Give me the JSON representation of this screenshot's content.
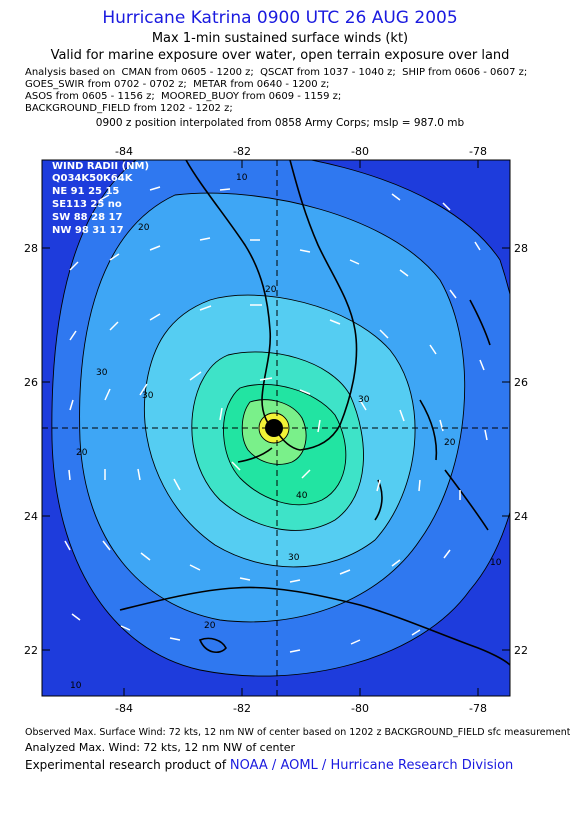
{
  "title": "Hurricane Katrina 0900 UTC 26 AUG 2005",
  "subtitle": "Max 1-min sustained surface winds (kt)",
  "valid": "Valid for marine exposure over water, open terrain exposure over land",
  "sources": [
    "Analysis based on  CMAN from 0605 - 1200 z;  QSCAT from 1037 - 1040 z;  SHIP from 0606 - 0607 z;",
    "GOES_SWIR from 0702 - 0702 z;  METAR from 0640 - 1200 z;",
    "ASOS from 0605 - 1156 z;  MOORED_BUOY from 0609 - 1159 z;",
    "BACKGROUND_FIELD from 1202 - 1202 z;"
  ],
  "position": "0900 z position interpolated from 0858 Army Corps; mslp = 987.0 mb",
  "axes": {
    "lon_ticks": [
      "-84",
      "-82",
      "-80",
      "-78"
    ],
    "lat_ticks": [
      "28",
      "26",
      "24",
      "22"
    ]
  },
  "contour_labels": [
    "10",
    "20",
    "20",
    "30",
    "30",
    "30",
    "40",
    "20",
    "30",
    "20",
    "10",
    "10",
    "20"
  ],
  "wind_radii": {
    "title": "WIND RADII (NM)",
    "header": "Q034K50K64K",
    "rows": [
      "NE 91 25 15",
      "SE113 25 no",
      "SW 88 28 17",
      "NW 98 31 17"
    ]
  },
  "colors": {
    "c0": "#1e3cdc",
    "c10": "#2f78f0",
    "c20": "#3ea6f5",
    "c30": "#55cdf2",
    "c40": "#3ee3c8",
    "c50": "#22e4a2",
    "c60": "#7af08a",
    "c64": "#f2f236",
    "land": "#000000",
    "title": "#1a1adf"
  },
  "footer": {
    "observed": "Observed Max. Surface Wind: 72 kts, 12 nm NW of center based on 1202 z BACKGROUND_FIELD sfc measurement",
    "analyzed": "Analyzed Max. Wind: 72 kts, 12 nm NW of center",
    "credit_prefix": "Experimental research product of ",
    "credit_link": "NOAA / AOML / Hurricane Research Division"
  }
}
